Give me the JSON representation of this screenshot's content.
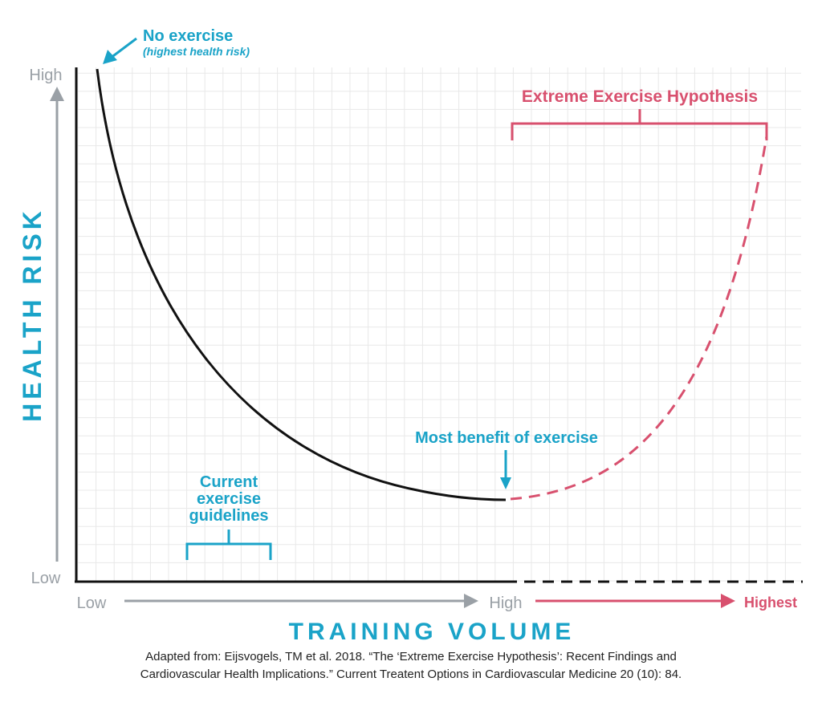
{
  "title": "",
  "y_axis": {
    "title": "HEALTH RISK",
    "high_label": "High",
    "low_label": "Low"
  },
  "x_axis": {
    "title": "TRAINING VOLUME",
    "low_label": "Low",
    "high_label": "High",
    "highest_label": "Highest"
  },
  "annotations": {
    "no_exercise": {
      "line1": "No exercise",
      "line2": "(highest health risk)"
    },
    "most_benefit": "Most benefit of exercise",
    "guidelines": [
      "Current",
      "exercise",
      "guidelines"
    ],
    "extreme": "Extreme Exercise Hypothesis"
  },
  "caption": {
    "line1": "Adapted from: Eijsvogels, TM et al. 2018. “The ‘Extreme Exercise Hypothesis’: Recent Findings and",
    "line2": "Cardiovascular Health Implications.” Current Treatent Options in Cardiovascular Medicine 20 (10): 84."
  },
  "colors": {
    "accent_blue": "#1aa3c8",
    "accent_pink": "#d8506e",
    "axis_gray": "#9aa0a6",
    "curve": "#111111",
    "grid": "#e8e8e8"
  }
}
